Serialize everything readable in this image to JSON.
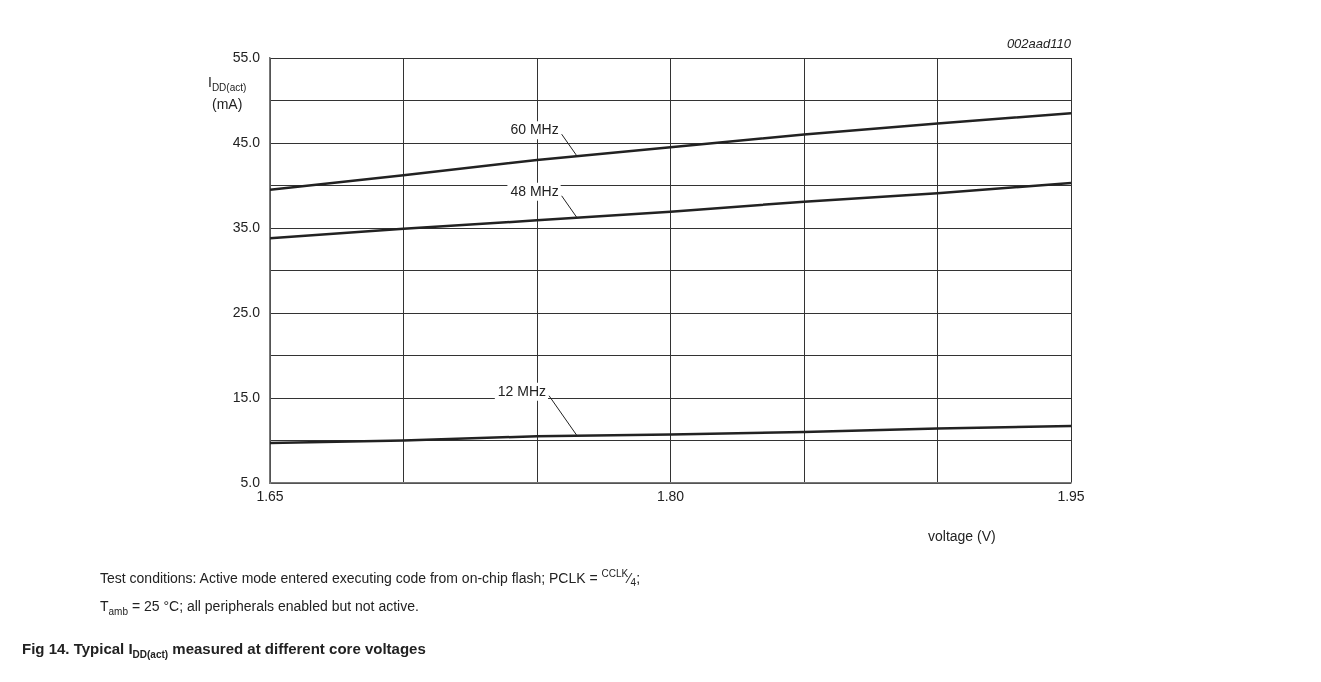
{
  "chart_data": {
    "type": "line",
    "title": "Fig 14.  Typical I$_{DD(act)}$ measured at different core voltages",
    "xlabel": "voltage (V)",
    "ylabel": "I$_{DD(act)}$ (mA)",
    "annotations": [
      "002aad110",
      "Test conditions: Active mode entered executing code from on-chip flash; PCLK = $^{CCLK}$⁄$_{4}$;",
      "T$_{amb}$ = 25 °C; all peripherals enabled but not active."
    ],
    "x": [
      1.65,
      1.7,
      1.75,
      1.8,
      1.85,
      1.9,
      1.95
    ],
    "series": [
      {
        "name": "60 MHz",
        "color": "#222222",
        "values": [
          39.5,
          41.2,
          43.0,
          44.5,
          46.0,
          47.3,
          48.5
        ]
      },
      {
        "name": "48 MHz",
        "color": "#222222",
        "values": [
          33.8,
          34.9,
          35.9,
          36.9,
          38.1,
          39.1,
          40.3
        ]
      },
      {
        "name": "12 MHz",
        "color": "#222222",
        "values": [
          9.7,
          10.0,
          10.5,
          10.7,
          11.0,
          11.4,
          11.7
        ]
      }
    ],
    "xlim": [
      1.65,
      1.95
    ],
    "xticks": [
      1.65,
      {
        "value": 1.7,
        "label": null
      },
      {
        "value": 1.75,
        "label": null
      },
      {
        "value": 1.8,
        "label": "1.80"
      },
      {
        "value": 1.85,
        "label": null
      },
      {
        "value": 1.9,
        "label": null
      },
      1.95
    ],
    "ylim": [
      5,
      55
    ],
    "yticks": [
      {
        "value": 5,
        "label": "5.0"
      },
      {
        "value": 10,
        "label": null
      },
      {
        "value": 15,
        "label": "15.0"
      },
      {
        "value": 20,
        "label": null
      },
      {
        "value": 25,
        "label": "25.0"
      },
      {
        "value": 30,
        "label": null
      },
      {
        "value": 35,
        "label": "35.0"
      },
      {
        "value": 40,
        "label": null
      },
      {
        "value": 45,
        "label": "45.0"
      },
      {
        "value": 50,
        "label": null
      },
      {
        "value": 55,
        "label": "55.0"
      }
    ],
    "grid": true,
    "legend": false,
    "line_style": "solid"
  }
}
